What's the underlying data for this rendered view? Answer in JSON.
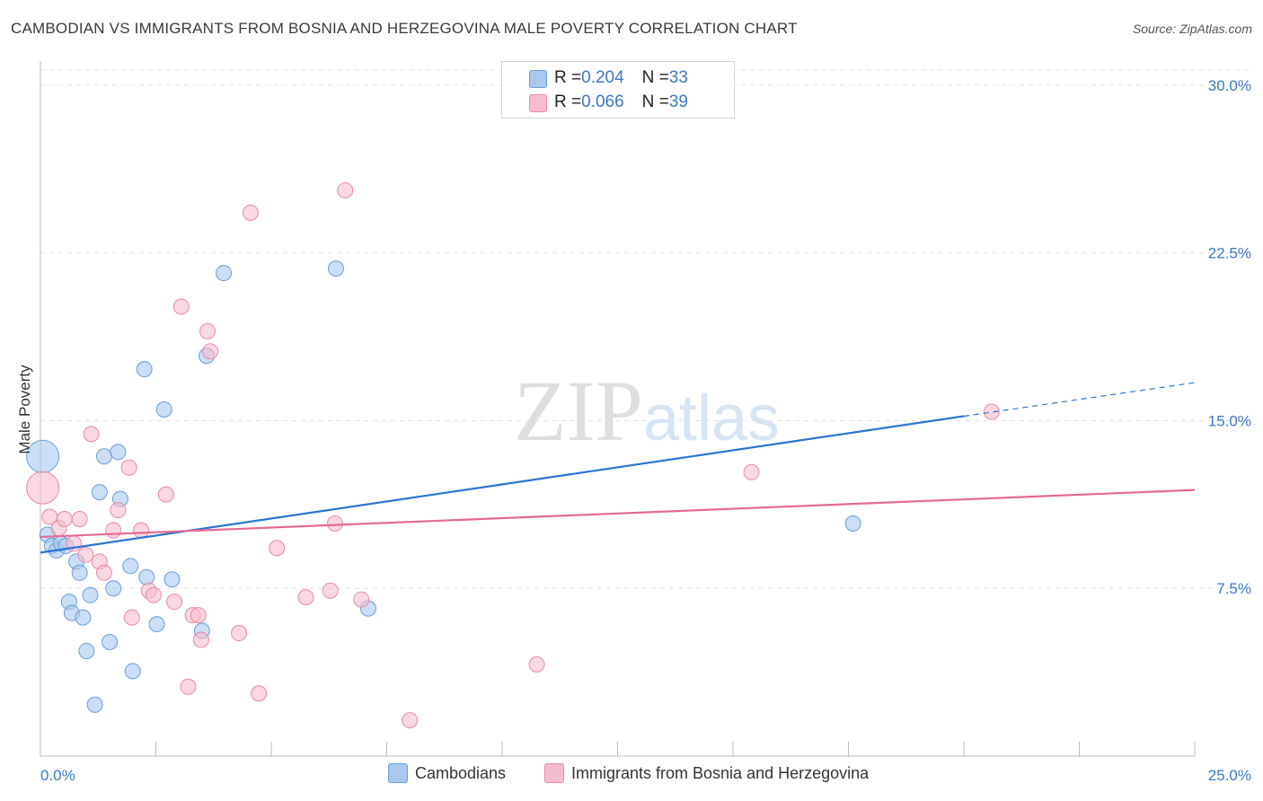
{
  "title": "CAMBODIAN VS IMMIGRANTS FROM BOSNIA AND HERZEGOVINA MALE POVERTY CORRELATION CHART",
  "source": "Source: ZipAtlas.com",
  "legend_top": {
    "rows": [
      {
        "r_label": "R = ",
        "r_value": "0.204",
        "n_label": "N = ",
        "n_value": "33"
      },
      {
        "r_label": "R = ",
        "r_value": "0.066",
        "n_label": "N = ",
        "n_value": "39"
      }
    ]
  },
  "legend_bottom": [
    "Cambodians",
    "Immigrants from Bosnia and Herzegovina"
  ],
  "colors": {
    "blue_fill": "#a9c8ee",
    "blue_stroke": "#6a9fd8",
    "blue_line": "#2b74d0",
    "pink_fill": "#f6bccd",
    "pink_stroke": "#e88aa8",
    "pink_line": "#e36a94",
    "tick_label": "#3a78c6",
    "grid": "#e2e2e2"
  },
  "chart_data": {
    "type": "scatter",
    "title": "CAMBODIAN VS IMMIGRANTS FROM BOSNIA AND HERZEGOVINA MALE POVERTY CORRELATION CHART",
    "xlabel": "",
    "ylabel": "Male Poverty",
    "xlim": [
      0,
      25
    ],
    "ylim": [
      0,
      31
    ],
    "x_tick_labels": [
      "0.0%",
      "25.0%"
    ],
    "y_ticks": [
      7.5,
      15.0,
      22.5,
      30.0
    ],
    "y_tick_labels": [
      "7.5%",
      "15.0%",
      "22.5%",
      "30.0%"
    ],
    "grid": true,
    "watermark": "ZIPatlas",
    "series": [
      {
        "name": "Cambodians",
        "R": 0.204,
        "N": 33,
        "points": [
          {
            "x": 0.05,
            "y": 13.4,
            "big": true
          },
          {
            "x": 0.15,
            "y": 9.9
          },
          {
            "x": 0.25,
            "y": 9.4
          },
          {
            "x": 0.35,
            "y": 9.2
          },
          {
            "x": 0.45,
            "y": 9.5
          },
          {
            "x": 0.55,
            "y": 9.4
          },
          {
            "x": 0.62,
            "y": 6.9
          },
          {
            "x": 0.68,
            "y": 6.4
          },
          {
            "x": 0.78,
            "y": 8.7
          },
          {
            "x": 0.85,
            "y": 8.2
          },
          {
            "x": 0.92,
            "y": 6.2
          },
          {
            "x": 1.0,
            "y": 4.7
          },
          {
            "x": 1.08,
            "y": 7.2
          },
          {
            "x": 1.18,
            "y": 2.3
          },
          {
            "x": 1.28,
            "y": 11.8
          },
          {
            "x": 1.38,
            "y": 13.4
          },
          {
            "x": 1.5,
            "y": 5.1
          },
          {
            "x": 1.58,
            "y": 7.5
          },
          {
            "x": 1.68,
            "y": 13.6
          },
          {
            "x": 1.73,
            "y": 11.5
          },
          {
            "x": 1.95,
            "y": 8.5
          },
          {
            "x": 2.0,
            "y": 3.8
          },
          {
            "x": 2.25,
            "y": 17.3
          },
          {
            "x": 2.3,
            "y": 8.0
          },
          {
            "x": 2.52,
            "y": 5.9
          },
          {
            "x": 2.68,
            "y": 15.5
          },
          {
            "x": 2.85,
            "y": 7.9
          },
          {
            "x": 3.5,
            "y": 5.6
          },
          {
            "x": 3.6,
            "y": 17.9
          },
          {
            "x": 3.97,
            "y": 21.6
          },
          {
            "x": 6.4,
            "y": 21.8
          },
          {
            "x": 7.1,
            "y": 6.6
          },
          {
            "x": 17.6,
            "y": 10.4
          }
        ],
        "trend": {
          "x0": 0,
          "y0": 9.1,
          "x1": 20.0,
          "y1": 15.2,
          "dashed_to_x": 25,
          "dashed_to_y": 16.7
        }
      },
      {
        "name": "Immigrants from Bosnia and Herzegovina",
        "R": 0.066,
        "N": 39,
        "points": [
          {
            "x": 0.05,
            "y": 12.0,
            "big": true
          },
          {
            "x": 0.2,
            "y": 10.7
          },
          {
            "x": 0.4,
            "y": 10.2
          },
          {
            "x": 0.52,
            "y": 10.6
          },
          {
            "x": 0.72,
            "y": 9.5
          },
          {
            "x": 0.85,
            "y": 10.6
          },
          {
            "x": 0.98,
            "y": 9.0
          },
          {
            "x": 1.1,
            "y": 14.4
          },
          {
            "x": 1.28,
            "y": 8.7
          },
          {
            "x": 1.38,
            "y": 8.2
          },
          {
            "x": 1.58,
            "y": 10.1
          },
          {
            "x": 1.68,
            "y": 11.0
          },
          {
            "x": 1.92,
            "y": 12.9
          },
          {
            "x": 1.98,
            "y": 6.2
          },
          {
            "x": 2.18,
            "y": 10.1
          },
          {
            "x": 2.35,
            "y": 7.4
          },
          {
            "x": 2.45,
            "y": 7.2
          },
          {
            "x": 2.72,
            "y": 11.7
          },
          {
            "x": 2.9,
            "y": 6.9
          },
          {
            "x": 3.05,
            "y": 20.1
          },
          {
            "x": 3.2,
            "y": 3.1
          },
          {
            "x": 3.3,
            "y": 6.3
          },
          {
            "x": 3.42,
            "y": 6.3
          },
          {
            "x": 3.48,
            "y": 5.2
          },
          {
            "x": 3.62,
            "y": 19.0
          },
          {
            "x": 3.68,
            "y": 18.1
          },
          {
            "x": 4.3,
            "y": 5.5
          },
          {
            "x": 4.55,
            "y": 24.3
          },
          {
            "x": 4.73,
            "y": 2.8
          },
          {
            "x": 5.12,
            "y": 9.3
          },
          {
            "x": 5.75,
            "y": 7.1
          },
          {
            "x": 6.28,
            "y": 7.4
          },
          {
            "x": 6.38,
            "y": 10.4
          },
          {
            "x": 6.6,
            "y": 25.3
          },
          {
            "x": 6.95,
            "y": 7.0
          },
          {
            "x": 8.0,
            "y": 1.6
          },
          {
            "x": 10.75,
            "y": 4.1
          },
          {
            "x": 15.4,
            "y": 12.7
          },
          {
            "x": 20.6,
            "y": 15.4
          }
        ],
        "trend": {
          "x0": 0,
          "y0": 9.8,
          "x1": 25,
          "y1": 11.9
        }
      }
    ]
  }
}
